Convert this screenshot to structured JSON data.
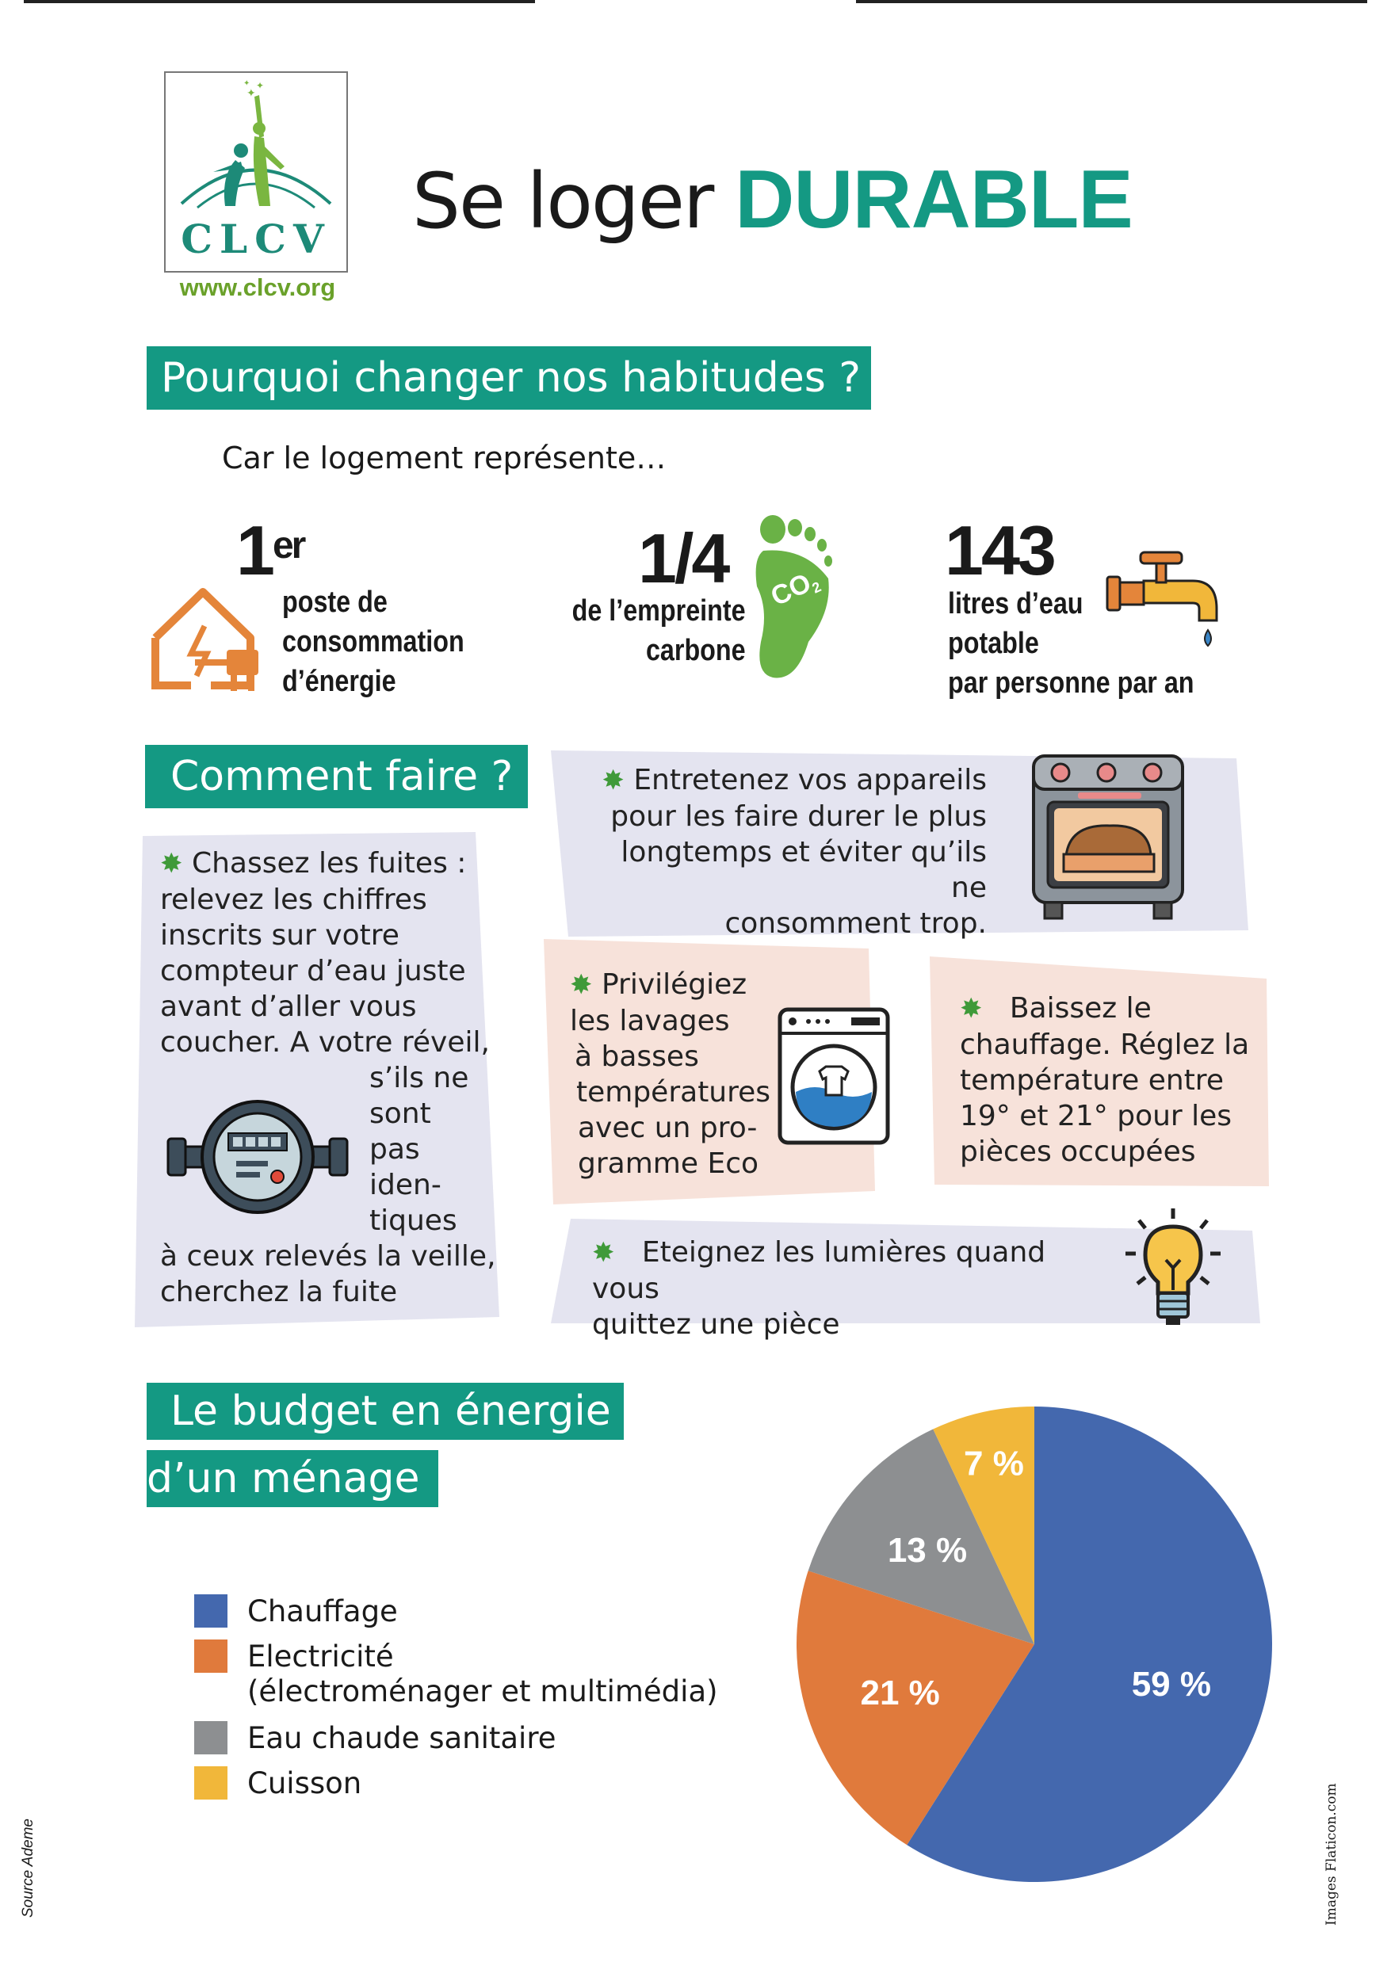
{
  "brand": {
    "name": "CLCV",
    "url": "www.clcv.org"
  },
  "title": {
    "part1": "Se loger",
    "part2": "DURABLE"
  },
  "section1": {
    "heading": "Pourquoi changer nos habitudes ?",
    "intro": "Car le logement représente…",
    "stats": [
      {
        "big": "1",
        "sup": "er",
        "lines": [
          "poste de",
          "consommation",
          "d’énergie"
        ],
        "icon": "house-plug-icon"
      },
      {
        "big": "1/4",
        "lines": [
          "de l’empreinte",
          "carbone"
        ],
        "icon": "co2-footprint-icon",
        "icon_label": "CO2"
      },
      {
        "big": "143",
        "lines": [
          "litres d’eau",
          "potable",
          "par personne par an"
        ],
        "icon": "water-tap-icon"
      }
    ]
  },
  "section2": {
    "heading": "Comment faire ?",
    "tips": {
      "leaks": [
        "Chassez les fuites :",
        "relevez les chiffres",
        "inscrits sur votre",
        "compteur d’eau juste",
        "avant d’aller vous",
        "coucher. A votre réveil,",
        "s’ils ne",
        "sont",
        "pas",
        "iden-",
        "tiques",
        "à ceux relevés la veille,",
        "cherchez la fuite"
      ],
      "appliances": [
        "Entretenez vos appareils",
        "pour les faire durer le plus",
        "longtemps et éviter qu’ils ne",
        "consomment trop."
      ],
      "washing": [
        "Privilégiez",
        "les lavages",
        "à basses",
        "températures",
        "avec un pro-",
        "gramme Eco"
      ],
      "heating": [
        "Baissez le",
        "chauffage. Réglez la",
        "température entre",
        "19° et 21° pour les",
        "pièces occupées"
      ],
      "lights": [
        "Eteignez les lumières quand vous",
        "quittez une pièce"
      ]
    },
    "icons": [
      "water-meter-icon",
      "oven-icon",
      "washing-machine-icon",
      "light-bulb-icon"
    ]
  },
  "section3": {
    "heading_lines": [
      "Le budget en énergie",
      "d’un ménage"
    ]
  },
  "chart_data": {
    "type": "pie",
    "title": "",
    "categories": [
      "Chauffage",
      "Electricité",
      "Eau chaude sanitaire",
      "Cuisson"
    ],
    "legend_labels": [
      "Chauffage",
      "Electricité\n(électroménager et multimédia)",
      "Eau chaude sanitaire",
      "Cuisson"
    ],
    "legend_line2": "(électroménager et multimédia)",
    "values": [
      59,
      21,
      13,
      7
    ],
    "value_labels": [
      "59 %",
      "21 %",
      "13 %",
      "7 %"
    ],
    "colors": [
      "#4468ae",
      "#e07a3c",
      "#8d8f91",
      "#f1b73a"
    ],
    "legend_position": "left"
  },
  "footer": {
    "source": "Source Ademe",
    "credits": "Images Flaticon.com"
  },
  "colors": {
    "accent": "#149983",
    "card_lavender": "#e4e4f0",
    "card_peach": "#f7e2da",
    "bullet": "#3f9a39"
  }
}
